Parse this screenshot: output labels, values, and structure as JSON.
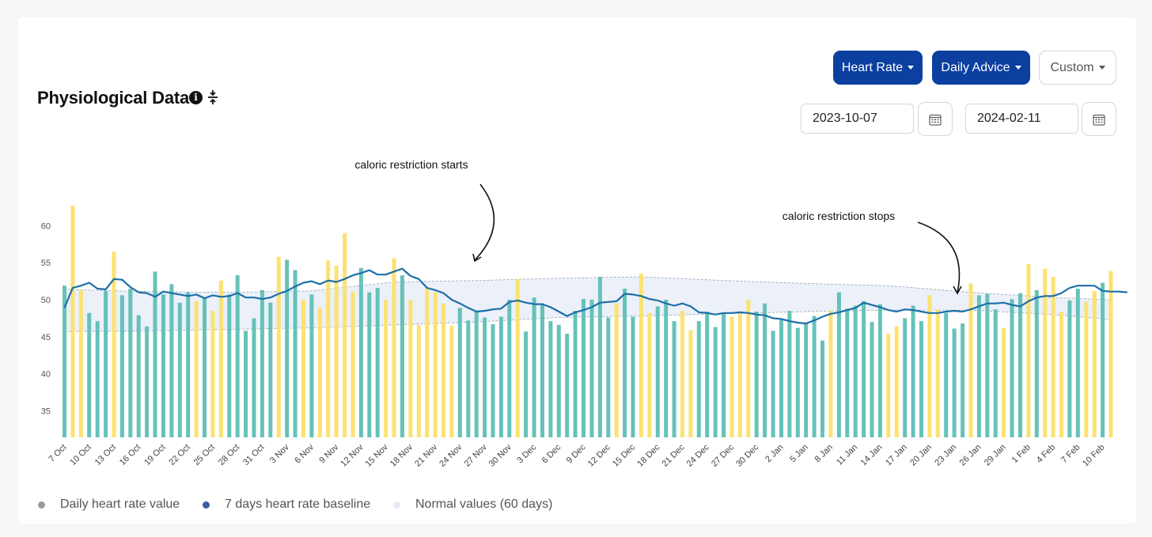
{
  "header": {
    "title": "Physiological Data",
    "info_icon": "info-circle-icon",
    "split_icon": "split-vertical-icon"
  },
  "controls": {
    "metric_label": "Heart Rate",
    "advice_label": "Daily Advice",
    "range_label": "Custom",
    "start_date": "2023-10-07",
    "end_date": "2024-02-11",
    "calendar_icon": "calendar-icon"
  },
  "annotations": {
    "start": "caloric restriction starts",
    "stop": "caloric restriction stops"
  },
  "legend": {
    "daily": "Daily heart rate value",
    "baseline": "7 days heart rate baseline",
    "normal": "Normal values (60 days)"
  },
  "colors": {
    "bar_normal": "#5ebfb5",
    "bar_highlight": "#fde06a",
    "bar_dark": "#3fa59b",
    "baseline_line": "#1d6fa8",
    "normal_band": "#e8edf8",
    "primary_button": "#0b3fa0"
  },
  "chart_data": {
    "type": "bar",
    "start_date": "2023-10-07",
    "end_date": "2024-02-11",
    "ylim": [
      31,
      64
    ],
    "yticks": [
      35,
      40,
      45,
      50,
      55,
      60
    ],
    "xticks": [
      "7 Oct",
      "10 Oct",
      "13 Oct",
      "16 Oct",
      "19 Oct",
      "22 Oct",
      "25 Oct",
      "28 Oct",
      "31 Oct",
      "3 Nov",
      "6 Nov",
      "9 Nov",
      "12 Nov",
      "15 Nov",
      "18 Nov",
      "21 Nov",
      "24 Nov",
      "27 Nov",
      "30 Nov",
      "3 Dec",
      "6 Dec",
      "9 Dec",
      "12 Dec",
      "15 Dec",
      "18 Dec",
      "21 Dec",
      "24 Dec",
      "27 Dec",
      "30 Dec",
      "2 Jan",
      "5 Jan",
      "8 Jan",
      "11 Jan",
      "14 Jan",
      "17 Jan",
      "20 Jan",
      "23 Jan",
      "26 Jan",
      "29 Jan",
      "1 Feb",
      "4 Feb",
      "7 Feb",
      "10 Feb"
    ],
    "series": [
      {
        "name": "Daily heart rate value",
        "values": [
          51.9,
          62.7,
          51.3,
          48.2,
          47.1,
          51.2,
          56.5,
          50.6,
          51.5,
          47.9,
          46.4,
          53.8,
          50.7,
          52.1,
          49.6,
          51.0,
          49.8,
          50.3,
          48.5,
          52.6,
          50.7,
          53.3,
          45.8,
          47.5,
          51.3,
          49.6,
          55.8,
          55.4,
          54.0,
          50.0,
          50.7,
          48.9,
          55.3,
          54.6,
          59.0,
          51.1,
          54.3,
          51.0,
          51.6,
          50.0,
          55.6,
          53.3,
          50.0,
          46.6,
          51.6,
          51.0,
          49.5,
          46.5,
          48.9,
          47.2,
          48.5,
          47.6,
          46.7,
          47.7,
          50.0,
          52.8,
          45.7,
          50.3,
          49.5,
          47.1,
          46.6,
          45.4,
          48.5,
          50.1,
          50.0,
          53.1,
          47.6,
          49.5,
          51.5,
          47.7,
          53.5,
          48.2,
          49.1,
          50.0,
          47.1,
          48.5,
          45.9,
          47.1,
          48.4,
          46.3,
          48.2,
          47.7,
          48.1,
          50.0,
          48.4,
          49.5,
          45.8,
          47.3,
          48.5,
          46.2,
          46.9,
          47.8,
          44.5,
          48.5,
          51.0,
          48.8,
          49.2,
          49.8,
          47.0,
          49.4,
          45.4,
          46.4,
          47.5,
          49.2,
          47.1,
          50.6,
          48.6,
          48.2,
          46.1,
          46.8,
          52.2,
          50.6,
          50.8,
          48.7,
          46.2,
          50.1,
          50.9,
          54.8,
          51.3,
          54.2,
          53.1,
          48.4,
          49.9,
          51.5,
          49.7,
          51.2,
          52.3,
          53.9
        ],
        "highlighted": [
          1,
          2,
          6,
          16,
          18,
          19,
          26,
          29,
          31,
          32,
          33,
          34,
          35,
          39,
          40,
          42,
          43,
          44,
          45,
          46,
          47,
          55,
          67,
          70,
          71,
          75,
          76,
          81,
          82,
          83,
          93,
          100,
          101,
          105,
          106,
          110,
          114,
          117,
          119,
          120,
          121,
          124,
          125,
          127
        ]
      },
      {
        "name": "7 days heart rate baseline",
        "values": [
          48.9,
          51.6,
          51.9,
          52.3,
          51.5,
          51.4,
          52.8,
          52.7,
          51.7,
          51.0,
          50.9,
          50.4,
          51.1,
          50.9,
          50.7,
          50.5,
          50.7,
          50.2,
          50.6,
          50.4,
          50.5,
          50.9,
          50.3,
          50.3,
          50.1,
          50.3,
          50.8,
          51.2,
          51.8,
          52.3,
          52.5,
          52.1,
          52.6,
          52.4,
          52.8,
          53.3,
          53.6,
          54.0,
          53.4,
          53.4,
          53.8,
          54.2,
          53.2,
          52.8,
          51.6,
          51.3,
          50.9,
          50.0,
          49.5,
          48.9,
          48.4,
          48.5,
          48.7,
          48.8,
          49.7,
          49.9,
          49.6,
          49.4,
          49.4,
          49.0,
          48.4,
          47.8,
          48.3,
          48.6,
          49.0,
          49.6,
          49.7,
          49.8,
          50.8,
          50.7,
          50.5,
          50.1,
          49.9,
          49.5,
          49.2,
          49.5,
          49.1,
          48.3,
          48.2,
          48.0,
          48.2,
          48.2,
          48.3,
          48.2,
          48.0,
          47.9,
          47.5,
          47.4,
          47.1,
          46.9,
          46.8,
          47.2,
          47.7,
          48.1,
          48.3,
          48.6,
          48.9,
          49.6,
          49.3,
          49.0,
          48.6,
          48.4,
          48.7,
          48.6,
          48.4,
          48.2,
          48.2,
          48.4,
          48.5,
          48.4,
          48.7,
          49.1,
          49.5,
          49.5,
          49.6,
          49.3,
          49.1,
          49.8,
          50.3,
          50.5,
          50.5,
          50.9,
          51.6,
          51.9,
          51.9,
          51.9,
          51.2,
          51.1,
          51.1,
          51.0
        ]
      }
    ],
    "normal_band": {
      "x_days": [
        0,
        10,
        20,
        30,
        40,
        50,
        60,
        70,
        80,
        90,
        100,
        110,
        120,
        127
      ],
      "upper": [
        51.4,
        51.1,
        51.0,
        51.2,
        52.4,
        52.6,
        52.9,
        53.1,
        52.6,
        52.2,
        51.9,
        51.0,
        50.3,
        50.0
      ],
      "lower": [
        45.7,
        45.8,
        46.0,
        46.2,
        46.6,
        47.0,
        47.6,
        47.8,
        48.1,
        48.4,
        48.6,
        48.6,
        48.0,
        47.3
      ]
    },
    "annotations": [
      {
        "text": "caloric restriction starts",
        "points_to": "2023-11-24"
      },
      {
        "text": "caloric restriction stops",
        "points_to": "2024-01-23"
      }
    ]
  }
}
